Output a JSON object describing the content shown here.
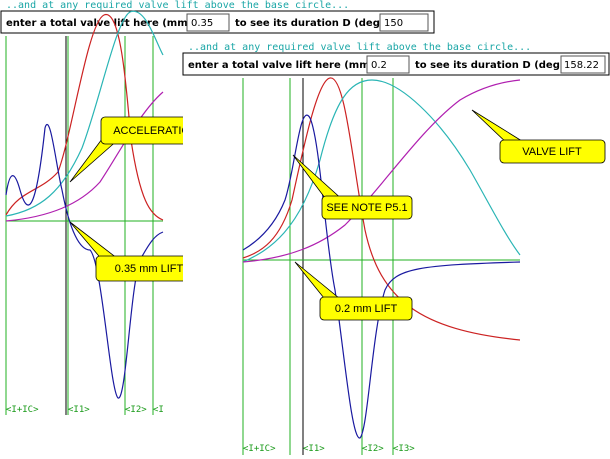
{
  "panels": [
    {
      "caption": "..and at any required valve lift above the base circle...",
      "prompt": "enter a total valve lift here (mm)",
      "lift": "0.35",
      "suffix": "to see its duration D (deg)",
      "duration": "150",
      "callouts": [
        "ACCELERATION RAMP",
        "0.35 mm LIFT"
      ],
      "markers": [
        "<I+IC>",
        "<I1>",
        "<I2>",
        "<I"
      ]
    },
    {
      "caption": "..and at any required valve lift above the base circle...",
      "prompt": "enter a total valve lift here (mm)",
      "lift": "0.2",
      "suffix": "to see its duration D (deg)",
      "duration": "158.22",
      "callouts": [
        "VALVE LIFT",
        "SEE NOTE P5.1",
        "0.2 mm LIFT"
      ],
      "markers": [
        "<I+IC>",
        "<I1>",
        "<I2>",
        "<I3>"
      ]
    }
  ]
}
